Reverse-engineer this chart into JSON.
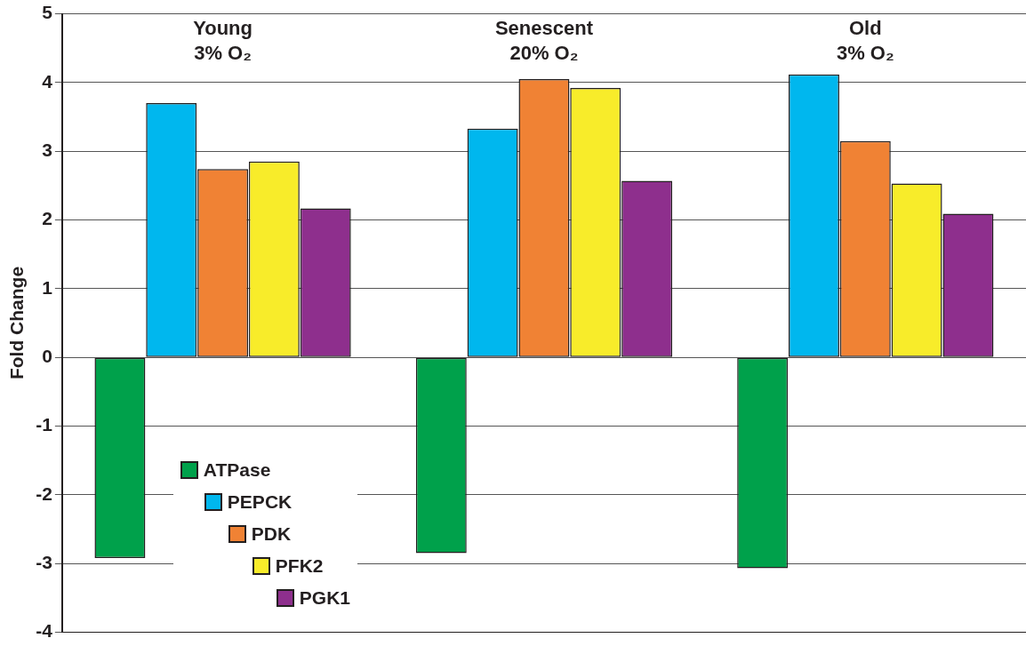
{
  "chart_data": {
    "type": "bar",
    "ylabel": "Fold Change",
    "categories": [
      "Young\n3% O₂",
      "Senescent\n20% O₂",
      "Old\n3% O₂"
    ],
    "series": [
      {
        "name": "ATPase",
        "color": "#00a14b",
        "values": [
          -2.92,
          -2.85,
          -3.07
        ]
      },
      {
        "name": "PEPCK",
        "color": "#00b7ee",
        "values": [
          3.7,
          3.33,
          4.12
        ]
      },
      {
        "name": "PDK",
        "color": "#f08234",
        "values": [
          2.74,
          4.05,
          3.15
        ]
      },
      {
        "name": "PFK2",
        "color": "#f8ec2a",
        "values": [
          2.85,
          3.92,
          2.53
        ]
      },
      {
        "name": "PGK1",
        "color": "#8e2f8d",
        "values": [
          2.17,
          2.57,
          2.09
        ]
      }
    ],
    "ylim": [
      -4,
      5
    ],
    "yticks": [
      -4,
      -3,
      -2,
      -1,
      0,
      1,
      2,
      3,
      4,
      5
    ],
    "grid": "y",
    "legend": "bottom left",
    "tick_labels": "y"
  }
}
